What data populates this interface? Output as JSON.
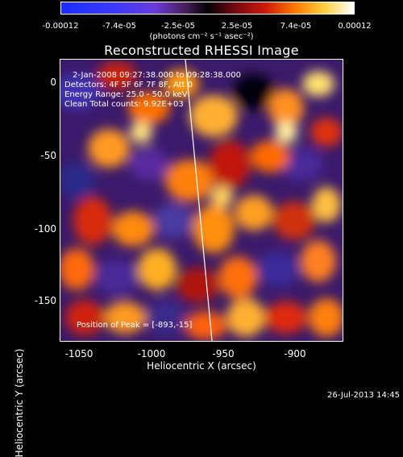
{
  "colorbar": {
    "ticks": [
      "-0.00012",
      "-7.4e-05",
      "-2.5e-05",
      "2.5e-05",
      "7.4e-05",
      "0.00012"
    ],
    "unit": "(photons cm⁻² s⁻¹ asec⁻²)"
  },
  "title": "Reconstructed RHESSI Image",
  "info": {
    "time_range": "2-Jan-2008 09:27:38.000 to 09:28:38.000",
    "detectors": "Detectors: 4F 5F 6F 7F 8F, Att 0",
    "energy": "Energy Range: 25.0 - 50.0 keV",
    "method": "Clean     Total counts: 9.92E+03",
    "peak": "Position of Peak = [-893,-15]"
  },
  "chart_data": {
    "type": "heatmap",
    "title": "Reconstructed RHESSI Image",
    "xlabel": "Heliocentric X (arcsec)",
    "ylabel": "Heliocentric Y (arcsec)",
    "xlim": [
      -1067,
      -872
    ],
    "ylim": [
      -177,
      16
    ],
    "x_ticks": [
      "-1050",
      "-1000",
      "-950",
      "-900"
    ],
    "y_ticks": [
      "0",
      "-50",
      "-100",
      "-150"
    ],
    "colorbar_range": [
      -0.00012,
      0.00012
    ],
    "peak_position": [
      -893,
      -15
    ]
  },
  "timestamp": "26-Jul-2013 14:45"
}
